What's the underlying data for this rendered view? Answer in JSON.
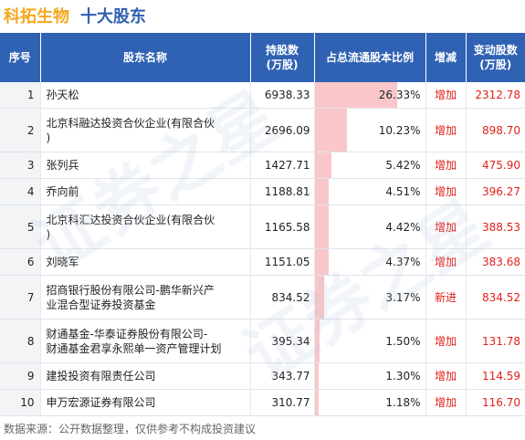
{
  "header": {
    "company": "科拓生物",
    "subtitle": "十大股东"
  },
  "table": {
    "columns": [
      "序号",
      "股东名称",
      "持股数\n(万股)",
      "占总流通股本比例",
      "增减",
      "变动股数\n(万股)"
    ],
    "rows": [
      {
        "idx": "1",
        "name": "孙天松",
        "hold": "6938.33",
        "pct": "26.33%",
        "pct_value": 26.33,
        "change": "增加",
        "change_value": "2312.78"
      },
      {
        "idx": "2",
        "name": "北京科融达投资合伙企业(有限合伙\n)",
        "hold": "2696.09",
        "pct": "10.23%",
        "pct_value": 10.23,
        "change": "增加",
        "change_value": "898.70"
      },
      {
        "idx": "3",
        "name": "张列兵",
        "hold": "1427.71",
        "pct": "5.42%",
        "pct_value": 5.42,
        "change": "增加",
        "change_value": "475.90"
      },
      {
        "idx": "4",
        "name": "乔向前",
        "hold": "1188.81",
        "pct": "4.51%",
        "pct_value": 4.51,
        "change": "增加",
        "change_value": "396.27"
      },
      {
        "idx": "5",
        "name": "北京科汇达投资合伙企业(有限合伙\n)",
        "hold": "1165.58",
        "pct": "4.42%",
        "pct_value": 4.42,
        "change": "增加",
        "change_value": "388.53"
      },
      {
        "idx": "6",
        "name": "刘晓军",
        "hold": "1151.05",
        "pct": "4.37%",
        "pct_value": 4.37,
        "change": "增加",
        "change_value": "383.68"
      },
      {
        "idx": "7",
        "name": "招商银行股份有限公司-鹏华新兴产\n业混合型证券投资基金",
        "hold": "834.52",
        "pct": "3.17%",
        "pct_value": 3.17,
        "change": "新进",
        "change_value": "834.52"
      },
      {
        "idx": "8",
        "name": "财通基金-华泰证券股份有限公司-\n财通基金君享永熙单一资产管理计划",
        "hold": "395.34",
        "pct": "1.50%",
        "pct_value": 1.5,
        "change": "增加",
        "change_value": "131.78"
      },
      {
        "idx": "9",
        "name": "建投投资有限责任公司",
        "hold": "343.77",
        "pct": "1.30%",
        "pct_value": 1.3,
        "change": "增加",
        "change_value": "114.59"
      },
      {
        "idx": "10",
        "name": "申万宏源证券有限公司",
        "hold": "310.77",
        "pct": "1.18%",
        "pct_value": 1.18,
        "change": "增加",
        "change_value": "116.70"
      }
    ]
  },
  "watermark": "证券之星",
  "footer": "数据来源：公开数据整理，仅供参考不构成投资建议",
  "colors": {
    "header_bg": "#2f62b3",
    "company": "#f4a81e",
    "subtitle": "#3060b0",
    "bar": "#f9c7c9",
    "change": "#e0201b"
  }
}
